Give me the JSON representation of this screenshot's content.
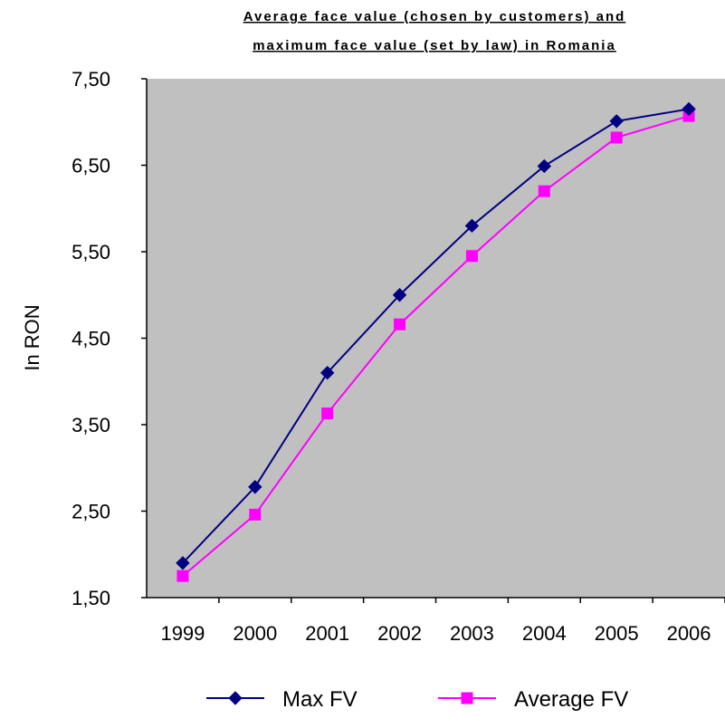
{
  "chart_data": {
    "type": "line",
    "title_lines": [
      "Average face value (chosen by customers) and",
      "maximum face value (set by law) in Romania"
    ],
    "xlabel": "",
    "ylabel": "In RON",
    "categories": [
      "1999",
      "2000",
      "2001",
      "2002",
      "2003",
      "2004",
      "2005",
      "2006"
    ],
    "ylim": [
      1.5,
      7.5
    ],
    "yticks": [
      1.5,
      2.5,
      3.5,
      4.5,
      5.5,
      6.5,
      7.5
    ],
    "ytick_labels": [
      "1,50",
      "2,50",
      "3,50",
      "4,50",
      "5,50",
      "6,50",
      "7,50"
    ],
    "plot_background": "#c0c0c0",
    "grid": false,
    "legend_position": "bottom",
    "series": [
      {
        "name": "Max FV",
        "values": [
          1.9,
          2.78,
          4.1,
          5.0,
          5.8,
          6.49,
          7.01,
          7.15
        ],
        "color": "#000080",
        "marker": "diamond"
      },
      {
        "name": "Average FV",
        "values": [
          1.75,
          2.46,
          3.63,
          4.66,
          5.45,
          6.2,
          6.82,
          7.07
        ],
        "color": "#ff00ff",
        "marker": "square"
      }
    ]
  }
}
